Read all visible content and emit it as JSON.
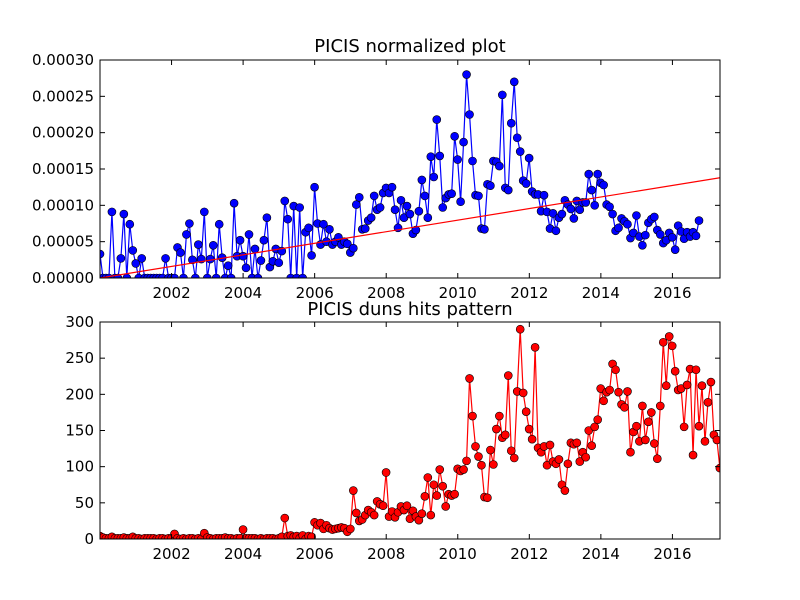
{
  "chart_data": [
    {
      "type": "line",
      "title": "PICIS normalized plot",
      "xlabel": "",
      "ylabel": "",
      "xlim": [
        2000.0,
        2017.33
      ],
      "ylim": [
        0,
        0.0003
      ],
      "xticks": [
        2002,
        2004,
        2006,
        2008,
        2010,
        2012,
        2014,
        2016
      ],
      "xtick_labels": [
        "2002",
        "2004",
        "2006",
        "2008",
        "2010",
        "2012",
        "2014",
        "2016"
      ],
      "yticks": [
        0,
        5e-05,
        0.0001,
        0.00015,
        0.0002,
        0.00025,
        0.0003
      ],
      "ytick_labels": [
        "0.00000",
        "0.00005",
        "0.00010",
        "0.00015",
        "0.00020",
        "0.00025",
        "0.00030"
      ],
      "grid": false,
      "series": [
        {
          "color": "#0000ff",
          "marker": "circle",
          "x_start": 2000.0,
          "x_step": 0.0833,
          "values": [
            3.3e-05,
            0.0,
            0.0,
            0.0,
            9.1e-05,
            0.0,
            0.0,
            2.7e-05,
            8.8e-05,
            0.0,
            7.4e-05,
            3.8e-05,
            2e-05,
            0.0,
            2.7e-05,
            0.0,
            0.0,
            0.0,
            0.0,
            0.0,
            0.0,
            0.0,
            2.7e-05,
            0.0,
            0.0,
            0.0,
            4.2e-05,
            3.5e-05,
            0.0,
            6e-05,
            7.5e-05,
            2.5e-05,
            0.0,
            4.6e-05,
            2.6e-05,
            9.1e-05,
            0.0,
            2.6e-05,
            4.5e-05,
            0.0,
            7.4e-05,
            2.8e-05,
            0.0,
            1.7e-05,
            0.0,
            0.000103,
            3e-05,
            5.2e-05,
            3e-05,
            1.4e-05,
            6e-05,
            0.0,
            4e-05,
            0.0,
            2.4e-05,
            5.2e-05,
            8.3e-05,
            1.5e-05,
            2.3e-05,
            4e-05,
            2.1e-05,
            3.7e-05,
            0.000106,
            8.1e-05,
            0.0,
            9.9e-05,
            0.0,
            9.7e-05,
            0.0,
            6.3e-05,
            6.9e-05,
            3.1e-05,
            0.000125,
            7.5e-05,
            4.6e-05,
            7.4e-05,
            5e-05,
            6.7e-05,
            4.6e-05,
            5e-05,
            5.6e-05,
            4.6e-05,
            5e-05,
            4.7e-05,
            3.5e-05,
            4.1e-05,
            0.000101,
            0.000111,
            6.7e-05,
            6.8e-05,
            7.9e-05,
            8.3e-05,
            0.000113,
            9.4e-05,
            9.7e-05,
            0.000117,
            0.000124,
            0.000117,
            0.000125,
            9.4e-05,
            6.9e-05,
            0.000107,
            8.3e-05,
            9.9e-05,
            8.8e-05,
            6.1e-05,
            6.6e-05,
            9.2e-05,
            0.000135,
            0.000113,
            8.3e-05,
            0.000167,
            0.000139,
            0.000218,
            0.000168,
            9.7e-05,
            0.00011,
            0.000115,
            0.000116,
            0.000195,
            0.000163,
            0.000105,
            0.000187,
            0.00028,
            0.000225,
            0.000161,
            0.000114,
            0.000113,
            6.8e-05,
            6.7e-05,
            0.000129,
            0.000127,
            0.000161,
            0.00016,
            0.000154,
            0.000252,
            0.000124,
            0.000121,
            0.000213,
            0.00027,
            0.000193,
            0.000174,
            0.000134,
            0.00013,
            0.000165,
            0.000119,
            0.000115,
            0.000115,
            9.2e-05,
            0.000114,
            9.1e-05,
            6.8e-05,
            8.9e-05,
            6.5e-05,
            8.3e-05,
            8.8e-05,
            0.000107,
            0.000101,
            9.5e-05,
            8.2e-05,
            0.000106,
            9.4e-05,
            0.000104,
            0.000104,
            0.000143,
            0.000121,
            0.0001,
            0.000143,
            0.000131,
            0.000128,
            0.000101,
            9.8e-05,
            8.8e-05,
            6.5e-05,
            6.9e-05,
            8.2e-05,
            7.8e-05,
            7.4e-05,
            5.5e-05,
            6.2e-05,
            8.6e-05,
            5.7e-05,
            4.5e-05,
            5.9e-05,
            7.6e-05,
            8.1e-05,
            8.4e-05,
            6.6e-05,
            6e-05,
            4.8e-05,
            5.2e-05,
            6.2e-05,
            5.6e-05,
            3.9e-05,
            7.2e-05,
            6.4e-05,
            5.4e-05,
            6.3e-05,
            5.7e-05,
            6.3e-05,
            5.8e-05,
            7.9e-05
          ]
        },
        {
          "color": "#ff0000",
          "marker": "none",
          "name": "",
          "x": [
            2000.0,
            2017.33
          ],
          "values": [
            0.0,
            0.000138
          ]
        }
      ]
    },
    {
      "type": "line",
      "title": "PICIS duns hits pattern",
      "xlabel": "",
      "ylabel": "",
      "xlim": [
        2000.0,
        2017.33
      ],
      "ylim": [
        0,
        300
      ],
      "xticks": [
        2002,
        2004,
        2006,
        2008,
        2010,
        2012,
        2014,
        2016
      ],
      "xtick_labels": [
        "2002",
        "2004",
        "2006",
        "2008",
        "2010",
        "2012",
        "2014",
        "2016"
      ],
      "yticks": [
        0,
        50,
        100,
        150,
        200,
        250,
        300
      ],
      "ytick_labels": [
        "0",
        "50",
        "100",
        "150",
        "200",
        "250",
        "300"
      ],
      "grid": false,
      "series": [
        {
          "color": "#ff0000",
          "marker": "circle",
          "x_start": 2000.0,
          "x_step": 0.0833,
          "values": [
            4,
            2,
            1,
            1,
            3,
            1,
            1,
            1,
            2,
            1,
            1,
            3,
            1,
            1,
            0,
            1,
            1,
            1,
            1,
            0,
            1,
            1,
            0,
            1,
            1,
            7,
            1,
            0,
            1,
            0,
            1,
            1,
            0,
            1,
            0,
            8,
            2,
            1,
            0,
            1,
            1,
            1,
            2,
            1,
            1,
            0,
            1,
            1,
            13,
            1,
            1,
            1,
            1,
            0,
            1,
            0,
            1,
            1,
            1,
            0,
            1,
            3,
            29,
            4,
            5,
            3,
            4,
            1,
            5,
            0,
            4,
            3,
            23,
            19,
            22,
            14,
            19,
            15,
            13,
            14,
            15,
            16,
            15,
            10,
            14,
            67,
            36,
            25,
            27,
            33,
            40,
            37,
            33,
            52,
            48,
            46,
            92,
            31,
            38,
            30,
            37,
            45,
            40,
            46,
            28,
            39,
            31,
            26,
            35,
            59,
            85,
            33,
            75,
            60,
            96,
            73,
            45,
            62,
            60,
            62,
            97,
            94,
            96,
            108,
            222,
            170,
            128,
            114,
            102,
            58,
            57,
            123,
            103,
            152,
            170,
            140,
            144,
            226,
            122,
            112,
            204,
            290,
            202,
            176,
            152,
            138,
            265,
            126,
            120,
            128,
            102,
            130,
            107,
            104,
            110,
            75,
            67,
            104,
            133,
            131,
            133,
            107,
            120,
            113,
            150,
            129,
            155,
            165,
            208,
            191,
            203,
            206,
            242,
            234,
            203,
            186,
            182,
            204,
            120,
            148,
            156,
            135,
            184,
            137,
            162,
            175,
            132,
            111,
            184,
            272,
            212,
            280,
            267,
            232,
            206,
            208,
            155,
            213,
            235,
            116,
            234,
            156,
            212,
            135,
            189,
            217,
            144,
            137,
            98
          ]
        }
      ]
    }
  ]
}
